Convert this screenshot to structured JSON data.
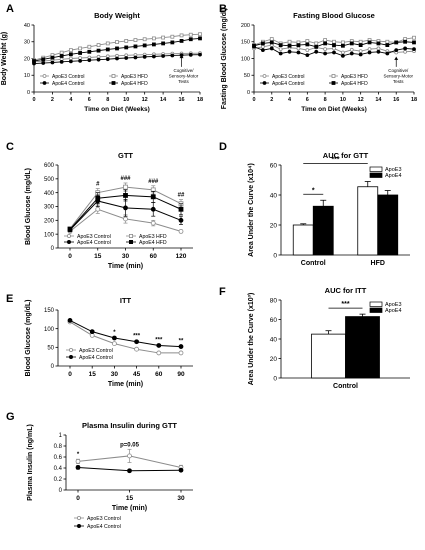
{
  "chart_data": [
    {
      "id": "A",
      "type": "line",
      "panel_letter": "A",
      "title": "Body Weight",
      "xlabel": "Time on Diet (Weeks)",
      "ylabel": "Body Weight (g)",
      "xlim": [
        0,
        18
      ],
      "ylim": [
        0,
        40
      ],
      "xticks": [
        0,
        2,
        4,
        6,
        8,
        10,
        12,
        14,
        16,
        18
      ],
      "yticks": [
        0,
        10,
        20,
        30,
        40
      ],
      "legend": [
        {
          "label": "ApoE3 Control",
          "style": "open-circle-gray"
        },
        {
          "label": "ApoE3 HFD",
          "style": "open-square-gray"
        },
        {
          "label": "ApoE4 Control",
          "style": "filled-circle-black"
        },
        {
          "label": "ApoE4 HFD",
          "style": "filled-square-black"
        }
      ],
      "x": [
        0,
        1,
        2,
        3,
        4,
        5,
        6,
        7,
        8,
        9,
        10,
        11,
        12,
        13,
        14,
        15,
        16,
        17,
        18
      ],
      "series": [
        {
          "name": "ApoE3 Control",
          "style": "open-circle-gray",
          "values": [
            18,
            18.5,
            19,
            19.5,
            20,
            20.3,
            20.6,
            21,
            21.3,
            21.6,
            21.9,
            22.1,
            22.3,
            22.5,
            22.7,
            22.9,
            23,
            23.1,
            23.2
          ]
        },
        {
          "name": "ApoE3 HFD",
          "style": "open-square-gray",
          "values": [
            19,
            20.5,
            22,
            23.5,
            25,
            26,
            27,
            28,
            29,
            29.8,
            30.5,
            31,
            31.5,
            32,
            32.5,
            33,
            33.8,
            34.2,
            34.5
          ]
        },
        {
          "name": "ApoE4 Control",
          "style": "filled-circle-black",
          "values": [
            17,
            17.3,
            17.6,
            18,
            18.3,
            18.6,
            19,
            19.3,
            19.6,
            20,
            20.3,
            20.6,
            21,
            21.2,
            21.5,
            21.8,
            22,
            22.2,
            22.3
          ]
        },
        {
          "name": "ApoE4 HFD",
          "style": "filled-square-black",
          "values": [
            18.5,
            19.5,
            20.5,
            21.5,
            22.5,
            23.3,
            24,
            24.7,
            25.4,
            26,
            26.6,
            27.2,
            27.8,
            28.4,
            29,
            29.6,
            30.5,
            31.5,
            32
          ]
        }
      ],
      "annotations": [
        {
          "text": "Cognitive/",
          "x": 16
        },
        {
          "text": "Sensory-Motor",
          "x": 16
        },
        {
          "text": "Tests",
          "x": 16
        }
      ],
      "arrow": {
        "x": 16,
        "y_from": 15,
        "y_to": 22
      }
    },
    {
      "id": "B",
      "type": "line",
      "panel_letter": "B",
      "title": "Fasting Blood Glucose",
      "xlabel": "Time on Diet (Weeks)",
      "ylabel": "Fasting Blood Glucose (mg/dl)",
      "xlim": [
        0,
        18
      ],
      "ylim": [
        0,
        200
      ],
      "xticks": [
        0,
        2,
        4,
        6,
        8,
        10,
        12,
        14,
        16,
        18
      ],
      "yticks": [
        0,
        50,
        100,
        150,
        200
      ],
      "legend": [
        {
          "label": "ApoE3 Control",
          "style": "open-circle-gray"
        },
        {
          "label": "ApoE3 HFD",
          "style": "open-square-gray"
        },
        {
          "label": "ApoE4 Control",
          "style": "filled-circle-black"
        },
        {
          "label": "ApoE4 HFD",
          "style": "filled-square-black"
        }
      ],
      "x": [
        0,
        1,
        2,
        3,
        4,
        5,
        6,
        7,
        8,
        9,
        10,
        11,
        12,
        13,
        14,
        15,
        16,
        17,
        18
      ],
      "series": [
        {
          "name": "ApoE3 Control",
          "style": "open-circle-gray",
          "values": [
            130,
            135,
            140,
            128,
            132,
            130,
            125,
            133,
            128,
            130,
            118,
            126,
            122,
            128,
            130,
            122,
            118,
            120,
            122
          ]
        },
        {
          "name": "ApoE3 HFD",
          "style": "open-square-gray",
          "values": [
            140,
            150,
            158,
            145,
            150,
            148,
            152,
            145,
            155,
            150,
            148,
            152,
            150,
            155,
            152,
            150,
            148,
            158,
            162
          ]
        },
        {
          "name": "ApoE4 Control",
          "style": "filled-circle-black",
          "values": [
            135,
            125,
            130,
            115,
            120,
            118,
            110,
            120,
            115,
            118,
            108,
            115,
            112,
            118,
            120,
            115,
            125,
            130,
            128
          ]
        },
        {
          "name": "ApoE4 HFD",
          "style": "filled-square-black",
          "values": [
            138,
            145,
            148,
            140,
            138,
            140,
            142,
            135,
            145,
            140,
            138,
            145,
            140,
            148,
            145,
            140,
            148,
            150,
            148
          ]
        }
      ],
      "annotations": [
        {
          "text": "Cognitive/",
          "x": 16
        },
        {
          "text": "Sensory-Motor",
          "x": 16
        },
        {
          "text": "Tests",
          "x": 16
        }
      ],
      "arrow": {
        "x": 16,
        "y_from": 75,
        "y_to": 105
      }
    },
    {
      "id": "C",
      "type": "line",
      "panel_letter": "C",
      "title": "GTT",
      "xlabel": "Time (min)",
      "ylabel": "Blood Glucose (mg/dL)",
      "ylim": [
        0,
        600
      ],
      "yticks": [
        0,
        100,
        200,
        300,
        400,
        500,
        600
      ],
      "categories": [
        "0",
        "15",
        "30",
        "60",
        "120"
      ],
      "legend": [
        {
          "label": "ApoE3 Control",
          "style": "open-circle-gray"
        },
        {
          "label": "ApoE4 Control",
          "style": "filled-circle-black"
        },
        {
          "label": "ApoE3 HFD",
          "style": "open-square-gray"
        },
        {
          "label": "ApoE4 HFD",
          "style": "filled-square-black"
        }
      ],
      "series": [
        {
          "name": "ApoE3 Control",
          "style": "open-circle-gray",
          "values": [
            120,
            280,
            210,
            180,
            120
          ],
          "errors": [
            10,
            30,
            30,
            20,
            10
          ]
        },
        {
          "name": "ApoE4 Control",
          "style": "filled-circle-black",
          "values": [
            130,
            340,
            290,
            280,
            200
          ],
          "errors": [
            10,
            40,
            60,
            50,
            30
          ]
        },
        {
          "name": "ApoE3 HFD",
          "style": "open-square-gray",
          "values": [
            140,
            400,
            440,
            420,
            320
          ],
          "errors": [
            10,
            30,
            30,
            30,
            30
          ]
        },
        {
          "name": "ApoE4 HFD",
          "style": "filled-square-black",
          "values": [
            135,
            360,
            380,
            370,
            280
          ],
          "errors": [
            10,
            40,
            40,
            40,
            40
          ]
        }
      ],
      "significance": [
        {
          "text": "#",
          "category": "15"
        },
        {
          "text": "###",
          "category": "30"
        },
        {
          "text": "###",
          "category": "60"
        },
        {
          "text": "##",
          "category": "120"
        }
      ]
    },
    {
      "id": "D",
      "type": "bar",
      "panel_letter": "D",
      "title": "AUC for GTT",
      "xlabel": "",
      "ylabel": "Area Under the Curve (x10⁴)",
      "ylim": [
        0,
        60
      ],
      "yticks": [
        0,
        20,
        40,
        60
      ],
      "categories": [
        "Control",
        "HFD"
      ],
      "legend": [
        {
          "label": "ApoE3",
          "style": "open-bar"
        },
        {
          "label": "ApoE4",
          "style": "black-bar"
        }
      ],
      "series": [
        {
          "name": "ApoE3",
          "values": [
            20,
            45.5
          ],
          "errors": [
            0.8,
            3.5
          ]
        },
        {
          "name": "ApoE4",
          "values": [
            32.5,
            40
          ],
          "errors": [
            4,
            3
          ]
        }
      ],
      "significance": [
        {
          "text": "*",
          "between": [
            "Control ApoE3",
            "Control ApoE4"
          ]
        },
        {
          "text": "***",
          "between": [
            "Control ApoE3",
            "HFD ApoE3"
          ]
        }
      ]
    },
    {
      "id": "E",
      "type": "line",
      "panel_letter": "E",
      "title": "ITT",
      "xlabel": "Time (min)",
      "ylabel": "Blood Glucose (mg/dL)",
      "ylim": [
        0,
        150
      ],
      "yticks": [
        0,
        50,
        100,
        150
      ],
      "categories": [
        "0",
        "15",
        "30",
        "45",
        "60",
        "90"
      ],
      "legend": [
        {
          "label": "ApoE3 Control",
          "style": "open-circle-gray"
        },
        {
          "label": "ApoE4 Control",
          "style": "filled-circle-black"
        }
      ],
      "series": [
        {
          "name": "ApoE3 Control",
          "style": "open-circle-gray",
          "values": [
            118,
            82,
            60,
            45,
            35,
            35
          ],
          "errors": [
            3,
            3,
            3,
            3,
            2,
            2
          ]
        },
        {
          "name": "ApoE4 Control",
          "style": "filled-circle-black",
          "values": [
            122,
            92,
            75,
            65,
            55,
            52
          ],
          "errors": [
            3,
            3,
            3,
            3,
            3,
            3
          ]
        }
      ],
      "significance": [
        {
          "text": "*",
          "category": "30"
        },
        {
          "text": "***",
          "category": "45"
        },
        {
          "text": "***",
          "category": "60"
        },
        {
          "text": "**",
          "category": "90"
        }
      ]
    },
    {
      "id": "F",
      "type": "bar",
      "panel_letter": "F",
      "title": "AUC for ITT",
      "xlabel": "",
      "ylabel": "Area Under the Curve (x10³)",
      "ylim": [
        0,
        80
      ],
      "yticks": [
        0,
        20,
        40,
        60,
        80
      ],
      "categories": [
        "Control"
      ],
      "legend": [
        {
          "label": "ApoE3",
          "style": "open-bar"
        },
        {
          "label": "ApoE4",
          "style": "black-bar"
        }
      ],
      "series": [
        {
          "name": "ApoE3",
          "values": [
            45
          ],
          "errors": [
            3.5
          ]
        },
        {
          "name": "ApoE4",
          "values": [
            63
          ],
          "errors": [
            2.5
          ]
        }
      ],
      "significance": [
        {
          "text": "***",
          "between": [
            "ApoE3",
            "ApoE4"
          ]
        }
      ]
    },
    {
      "id": "G",
      "type": "line",
      "panel_letter": "G",
      "title": "Plasma Insulin during GTT",
      "xlabel": "Time (min)",
      "ylabel": "Plasma Insulin (ng/mL)",
      "ylim": [
        0,
        1.0
      ],
      "yticks": [
        0,
        0.2,
        0.4,
        0.6,
        0.8,
        1.0
      ],
      "categories": [
        "0",
        "15",
        "30"
      ],
      "legend": [
        {
          "label": "ApoE3 Control",
          "style": "open-circle-gray"
        },
        {
          "label": "ApoE4 Control",
          "style": "filled-circle-black"
        }
      ],
      "series": [
        {
          "name": "ApoE3 Control",
          "style": "open-circle-gray",
          "values": [
            0.52,
            0.62,
            0.41
          ],
          "errors": [
            0.04,
            0.12,
            0.04
          ]
        },
        {
          "name": "ApoE4 Control",
          "style": "filled-circle-black",
          "values": [
            0.41,
            0.35,
            0.36
          ],
          "errors": [
            0.03,
            0.02,
            0.02
          ]
        }
      ],
      "significance": [
        {
          "text": "*",
          "category": "0"
        },
        {
          "text": "p=0.05",
          "category": "15"
        }
      ]
    }
  ],
  "colors": {
    "apoe3": "#8c8c8c",
    "apoe4": "#000000",
    "axis": "#000000"
  }
}
